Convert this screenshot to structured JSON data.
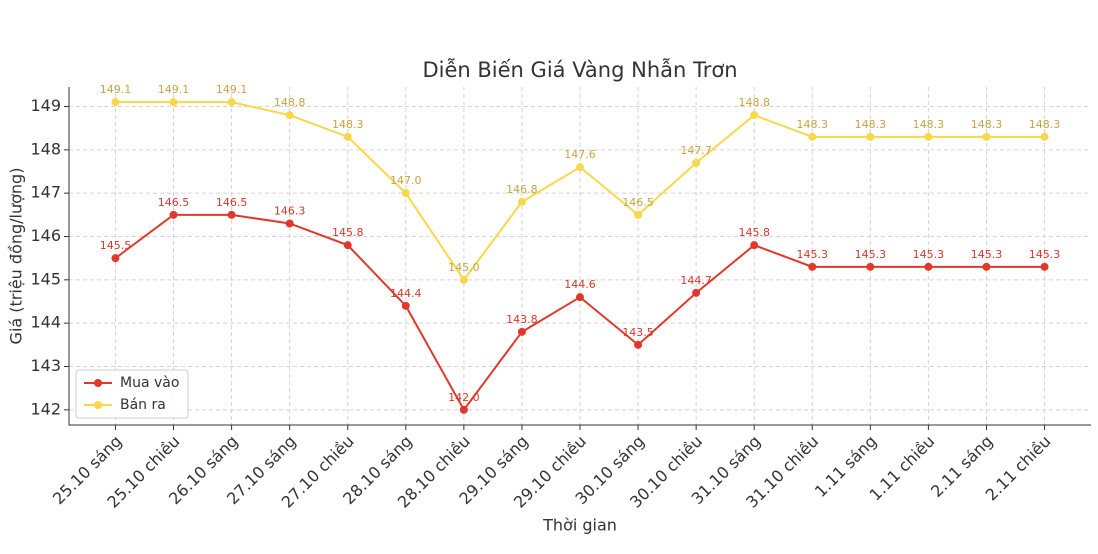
{
  "chart_data": {
    "type": "line",
    "title": "Diễn Biến Giá Vàng Nhẫn Trơn",
    "x_label": "Thời gian",
    "y_label": "Giá (triệu đồng/lượng)",
    "categories": [
      "25.10 sáng",
      "25.10 chiều",
      "26.10 sáng",
      "27.10 sáng",
      "27.10 chiều",
      "28.10 sáng",
      "28.10 chiều",
      "29.10 sáng",
      "29.10 chiều",
      "30.10 sáng",
      "30.10 chiều",
      "31.10 sáng",
      "31.10 chiều",
      "1.11 sáng",
      "1.11 chiều",
      "2.11 sáng",
      "2.11 chiều"
    ],
    "series": [
      {
        "name": "Mua vào",
        "color": "#e0392c",
        "label_color": "#d8382c",
        "values": [
          145.5,
          146.5,
          146.5,
          146.3,
          145.8,
          144.4,
          142.0,
          143.8,
          144.6,
          143.5,
          144.7,
          145.8,
          145.3,
          145.3,
          145.3,
          145.3,
          145.3
        ],
        "value_labels": [
          "145.5",
          "146.5",
          "146.5",
          "146.3",
          "145.8",
          "144.4",
          "142.0",
          "143.8",
          "144.6",
          "143.5",
          "144.7",
          "145.8",
          "145.3",
          "145.3",
          "145.3",
          "145.3",
          "145.3"
        ]
      },
      {
        "name": "Bán ra",
        "color": "#f6d84a",
        "label_color": "#c9a443",
        "values": [
          149.1,
          149.1,
          149.1,
          148.8,
          148.3,
          147.0,
          145.0,
          146.8,
          147.6,
          146.5,
          147.7,
          148.8,
          148.3,
          148.3,
          148.3,
          148.3,
          148.3
        ],
        "value_labels": [
          "149.1",
          "149.1",
          "149.1",
          "148.8",
          "148.3",
          "147.0",
          "145.0",
          "146.8",
          "147.6",
          "146.5",
          "147.7",
          "148.8",
          "148.3",
          "148.3",
          "148.3",
          "148.3",
          "148.3"
        ]
      }
    ],
    "ylim": [
      141.65,
      149.45
    ],
    "yticks": [
      142,
      143,
      144,
      145,
      146,
      147,
      148,
      149
    ],
    "grid": true,
    "legend": "lower left"
  }
}
